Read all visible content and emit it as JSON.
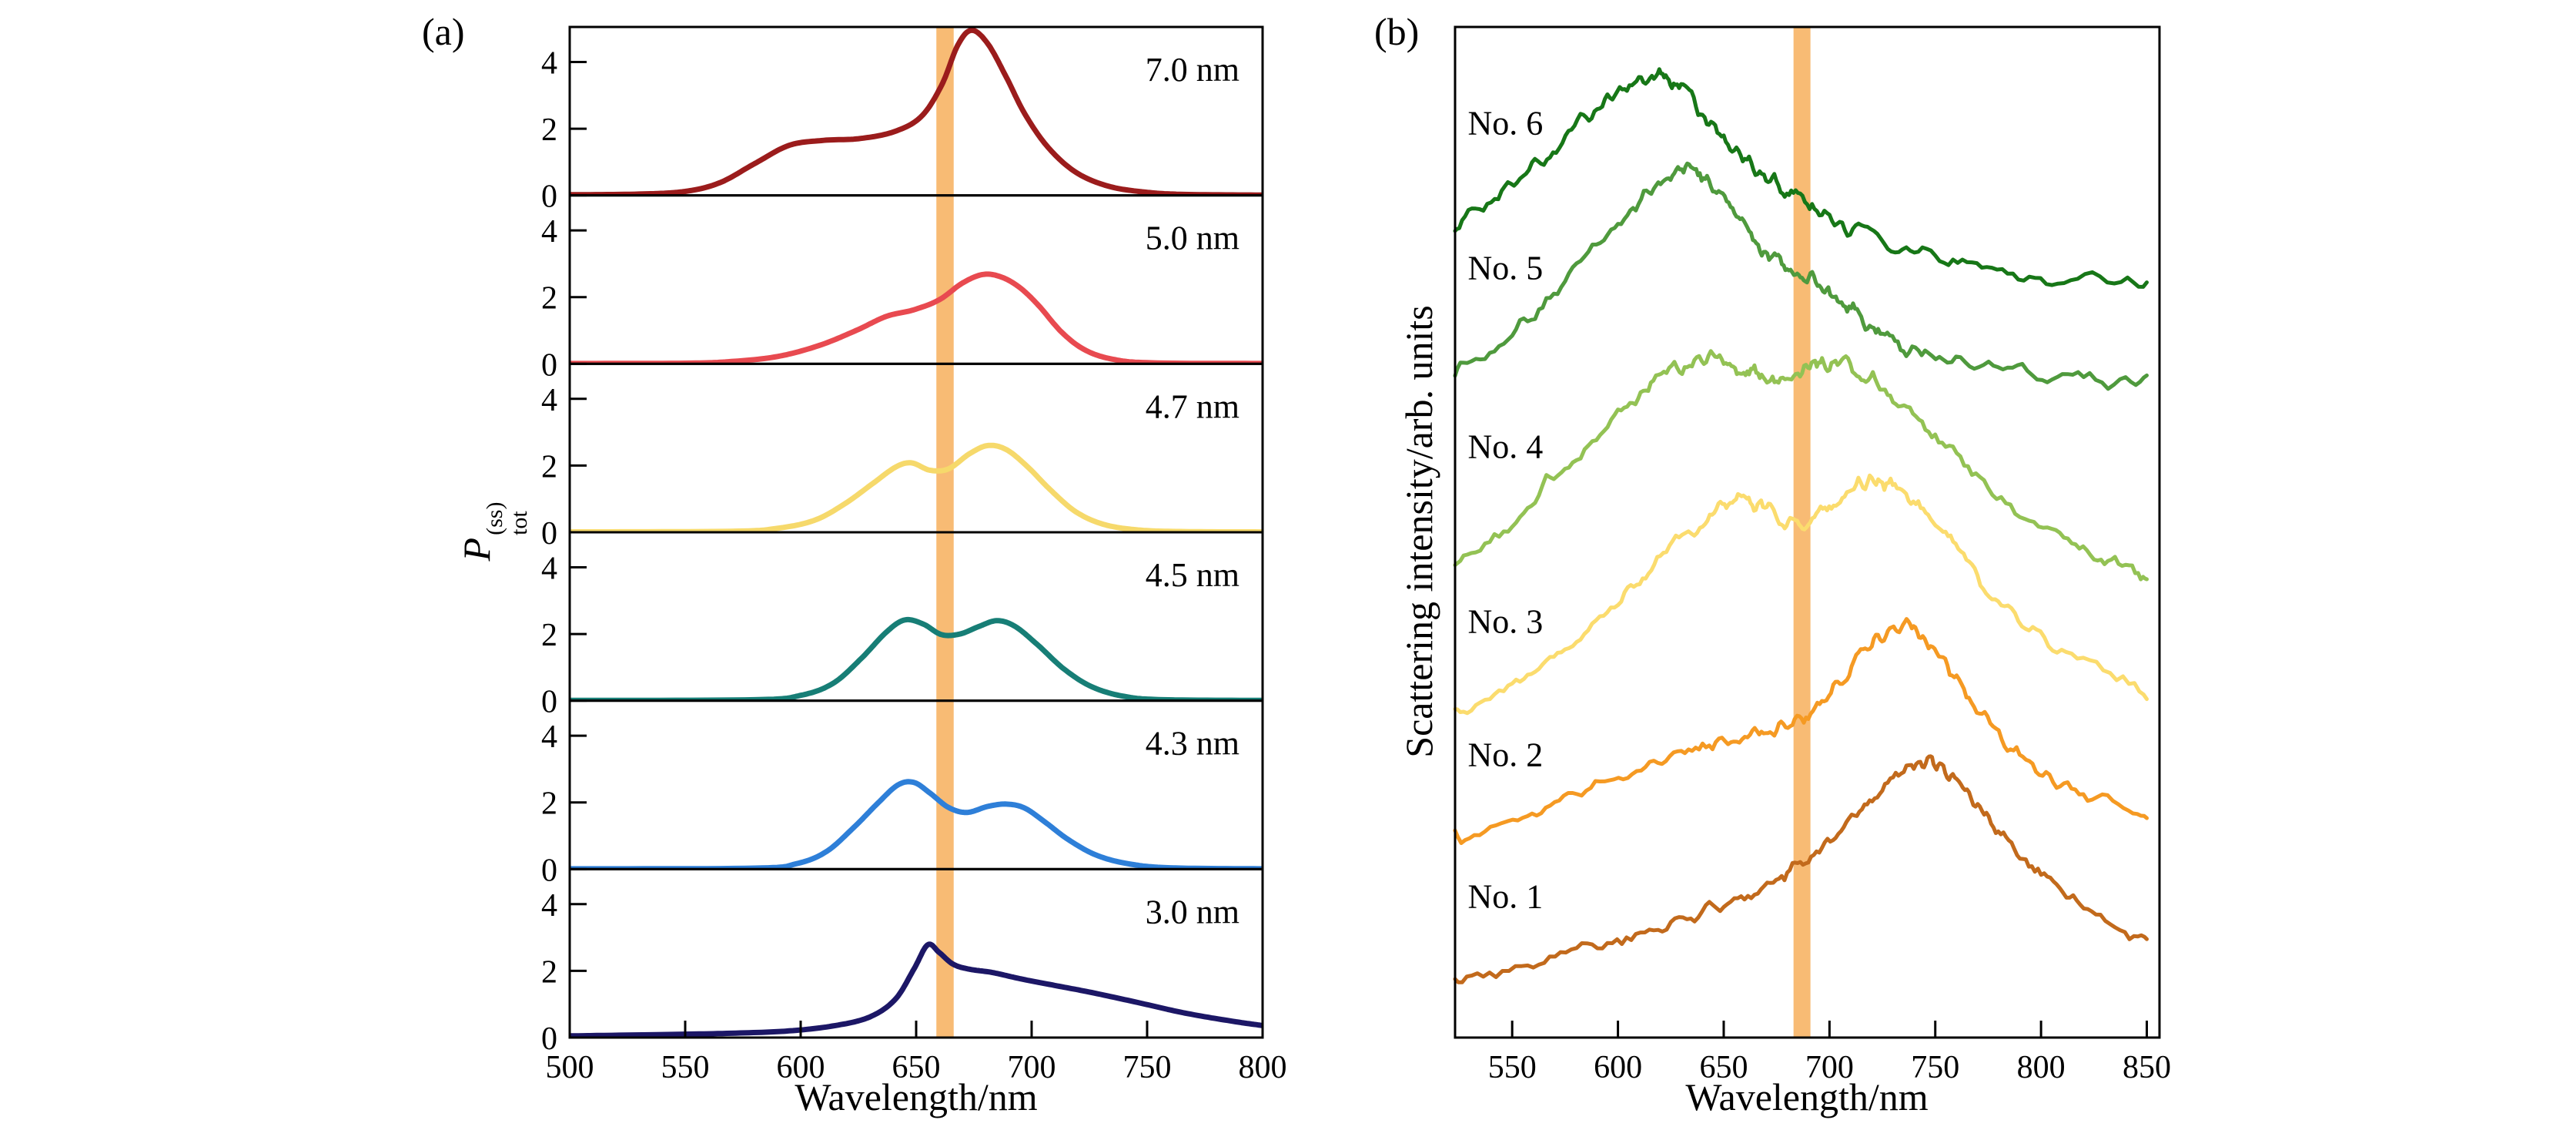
{
  "chart_data": [
    {
      "id": "panel_a",
      "type": "line",
      "panel_letter": "(a)",
      "xlabel": "Wavelength/nm",
      "ylabel": {
        "symbol": "P",
        "sup": "(ss)",
        "sub": "tot"
      },
      "xlim": [
        500,
        800
      ],
      "x_ticks": [
        500,
        550,
        600,
        650,
        700,
        750,
        800
      ],
      "ylim": [
        0,
        5.05
      ],
      "y_ticks": [
        0,
        2,
        4
      ],
      "grid": false,
      "band": {
        "center_nm": 662.5,
        "width_nm": 7.5,
        "color": "#F6A445",
        "opacity": 0.75
      },
      "subplots": [
        {
          "label": "7.0 nm",
          "color": "#9B1C1C",
          "points": [
            [
              500,
              0.02
            ],
            [
              530,
              0.04
            ],
            [
              550,
              0.12
            ],
            [
              565,
              0.38
            ],
            [
              580,
              0.95
            ],
            [
              595,
              1.5
            ],
            [
              610,
              1.65
            ],
            [
              625,
              1.7
            ],
            [
              640,
              1.9
            ],
            [
              652,
              2.35
            ],
            [
              661,
              3.3
            ],
            [
              668,
              4.5
            ],
            [
              674,
              4.95
            ],
            [
              681,
              4.55
            ],
            [
              689,
              3.55
            ],
            [
              697,
              2.45
            ],
            [
              707,
              1.45
            ],
            [
              719,
              0.7
            ],
            [
              733,
              0.28
            ],
            [
              749,
              0.1
            ],
            [
              766,
              0.03
            ],
            [
              800,
              0.01
            ]
          ]
        },
        {
          "label": "5.0 nm",
          "color": "#E84A50",
          "points": [
            [
              500,
              0.01
            ],
            [
              550,
              0.02
            ],
            [
              570,
              0.07
            ],
            [
              590,
              0.22
            ],
            [
              608,
              0.55
            ],
            [
              624,
              1.0
            ],
            [
              637,
              1.42
            ],
            [
              649,
              1.62
            ],
            [
              660,
              1.92
            ],
            [
              670,
              2.42
            ],
            [
              679,
              2.68
            ],
            [
              687,
              2.6
            ],
            [
              695,
              2.28
            ],
            [
              703,
              1.75
            ],
            [
              713,
              0.95
            ],
            [
              723,
              0.42
            ],
            [
              735,
              0.14
            ],
            [
              752,
              0.03
            ],
            [
              800,
              0.01
            ]
          ]
        },
        {
          "label": "4.7 nm",
          "color": "#F6D96B",
          "points": [
            [
              500,
              0.01
            ],
            [
              570,
              0.03
            ],
            [
              590,
              0.12
            ],
            [
              606,
              0.36
            ],
            [
              619,
              0.85
            ],
            [
              631,
              1.45
            ],
            [
              641,
              1.95
            ],
            [
              648,
              2.08
            ],
            [
              656,
              1.86
            ],
            [
              664,
              1.9
            ],
            [
              673,
              2.35
            ],
            [
              681,
              2.6
            ],
            [
              689,
              2.48
            ],
            [
              698,
              1.98
            ],
            [
              708,
              1.28
            ],
            [
              719,
              0.62
            ],
            [
              731,
              0.24
            ],
            [
              746,
              0.07
            ],
            [
              766,
              0.02
            ],
            [
              800,
              0.01
            ]
          ]
        },
        {
          "label": "4.5 nm",
          "color": "#177E76",
          "points": [
            [
              500,
              0.01
            ],
            [
              580,
              0.03
            ],
            [
              600,
              0.16
            ],
            [
              614,
              0.52
            ],
            [
              626,
              1.25
            ],
            [
              637,
              2.05
            ],
            [
              645,
              2.42
            ],
            [
              653,
              2.3
            ],
            [
              661,
              1.98
            ],
            [
              669,
              2.0
            ],
            [
              677,
              2.22
            ],
            [
              685,
              2.4
            ],
            [
              693,
              2.22
            ],
            [
              703,
              1.65
            ],
            [
              714,
              0.95
            ],
            [
              726,
              0.42
            ],
            [
              740,
              0.13
            ],
            [
              757,
              0.03
            ],
            [
              800,
              0.01
            ]
          ]
        },
        {
          "label": "4.3 nm",
          "color": "#2E7FD8",
          "points": [
            [
              500,
              0.01
            ],
            [
              580,
              0.03
            ],
            [
              598,
              0.16
            ],
            [
              611,
              0.52
            ],
            [
              623,
              1.25
            ],
            [
              633,
              1.95
            ],
            [
              642,
              2.52
            ],
            [
              649,
              2.6
            ],
            [
              656,
              2.28
            ],
            [
              664,
              1.85
            ],
            [
              672,
              1.7
            ],
            [
              681,
              1.88
            ],
            [
              689,
              1.95
            ],
            [
              697,
              1.83
            ],
            [
              706,
              1.4
            ],
            [
              716,
              0.88
            ],
            [
              728,
              0.42
            ],
            [
              742,
              0.16
            ],
            [
              760,
              0.04
            ],
            [
              800,
              0.01
            ]
          ]
        },
        {
          "label": "3.0 nm",
          "color": "#1C1766",
          "points": [
            [
              500,
              0.05
            ],
            [
              540,
              0.09
            ],
            [
              570,
              0.13
            ],
            [
              595,
              0.2
            ],
            [
              615,
              0.36
            ],
            [
              630,
              0.62
            ],
            [
              641,
              1.15
            ],
            [
              649,
              2.05
            ],
            [
              655,
              2.78
            ],
            [
              660,
              2.55
            ],
            [
              666,
              2.2
            ],
            [
              673,
              2.05
            ],
            [
              683,
              1.95
            ],
            [
              696,
              1.75
            ],
            [
              711,
              1.55
            ],
            [
              726,
              1.35
            ],
            [
              746,
              1.05
            ],
            [
              766,
              0.74
            ],
            [
              786,
              0.5
            ],
            [
              800,
              0.36
            ]
          ]
        }
      ]
    },
    {
      "id": "panel_b",
      "type": "line",
      "panel_letter": "(b)",
      "xlabel": "Wavelength/nm",
      "ylabel": "Scattering intensity/arb. units",
      "xlim": [
        523,
        856
      ],
      "x_ticks": [
        550,
        600,
        650,
        700,
        750,
        800,
        850
      ],
      "ylim": [
        0,
        10
      ],
      "grid": false,
      "band": {
        "center_nm": 687,
        "width_nm": 8,
        "color": "#F6A445",
        "opacity": 0.75
      },
      "noise_amplitude": 0.07,
      "series": [
        {
          "label": "No. 6",
          "color": "#177717",
          "label_pos": [
            529,
            9.05
          ],
          "points": [
            [
              523,
              8.05
            ],
            [
              545,
              8.35
            ],
            [
              565,
              8.7
            ],
            [
              585,
              9.1
            ],
            [
              602,
              9.38
            ],
            [
              617,
              9.5
            ],
            [
              628,
              9.42
            ],
            [
              642,
              9.1
            ],
            [
              656,
              8.78
            ],
            [
              670,
              8.52
            ],
            [
              684,
              8.32
            ],
            [
              700,
              8.12
            ],
            [
              718,
              7.95
            ],
            [
              742,
              7.76
            ],
            [
              772,
              7.6
            ],
            [
              808,
              7.5
            ],
            [
              850,
              7.42
            ]
          ]
        },
        {
          "label": "No. 5",
          "color": "#4F9A3D",
          "label_pos": [
            529,
            7.62
          ],
          "points": [
            [
              523,
              6.62
            ],
            [
              550,
              6.95
            ],
            [
              575,
              7.5
            ],
            [
              600,
              8.02
            ],
            [
              618,
              8.42
            ],
            [
              631,
              8.6
            ],
            [
              643,
              8.45
            ],
            [
              656,
              8.1
            ],
            [
              668,
              7.82
            ],
            [
              680,
              7.62
            ],
            [
              691,
              7.52
            ],
            [
              703,
              7.3
            ],
            [
              716,
              7.1
            ],
            [
              731,
              6.9
            ],
            [
              752,
              6.74
            ],
            [
              782,
              6.6
            ],
            [
              815,
              6.53
            ],
            [
              850,
              6.48
            ]
          ]
        },
        {
          "label": "No. 4",
          "color": "#93C254",
          "label_pos": [
            529,
            5.85
          ],
          "points": [
            [
              523,
              4.68
            ],
            [
              550,
              5.12
            ],
            [
              575,
              5.66
            ],
            [
              600,
              6.16
            ],
            [
              618,
              6.5
            ],
            [
              635,
              6.68
            ],
            [
              650,
              6.7
            ],
            [
              662,
              6.58
            ],
            [
              674,
              6.5
            ],
            [
              688,
              6.62
            ],
            [
              700,
              6.68
            ],
            [
              714,
              6.6
            ],
            [
              730,
              6.35
            ],
            [
              750,
              5.95
            ],
            [
              775,
              5.45
            ],
            [
              805,
              5.0
            ],
            [
              830,
              4.74
            ],
            [
              850,
              4.6
            ]
          ]
        },
        {
          "label": "No. 3",
          "color": "#FBDC6E",
          "label_pos": [
            529,
            4.12
          ],
          "points": [
            [
              523,
              3.25
            ],
            [
              550,
              3.5
            ],
            [
              575,
              3.85
            ],
            [
              600,
              4.3
            ],
            [
              620,
              4.75
            ],
            [
              640,
              5.1
            ],
            [
              654,
              5.3
            ],
            [
              666,
              5.28
            ],
            [
              678,
              5.1
            ],
            [
              690,
              5.1
            ],
            [
              704,
              5.34
            ],
            [
              719,
              5.5
            ],
            [
              733,
              5.44
            ],
            [
              749,
              5.12
            ],
            [
              766,
              4.68
            ],
            [
              786,
              4.2
            ],
            [
              812,
              3.8
            ],
            [
              850,
              3.42
            ]
          ]
        },
        {
          "label": "No. 2",
          "color": "#F59A23",
          "label_pos": [
            529,
            2.8
          ],
          "points": [
            [
              523,
              2.0
            ],
            [
              555,
              2.2
            ],
            [
              585,
              2.45
            ],
            [
              615,
              2.7
            ],
            [
              640,
              2.9
            ],
            [
              660,
              3.0
            ],
            [
              675,
              3.06
            ],
            [
              690,
              3.2
            ],
            [
              705,
              3.55
            ],
            [
              720,
              3.9
            ],
            [
              733,
              4.06
            ],
            [
              745,
              3.95
            ],
            [
              759,
              3.6
            ],
            [
              776,
              3.1
            ],
            [
              796,
              2.7
            ],
            [
              820,
              2.4
            ],
            [
              850,
              2.2
            ]
          ]
        },
        {
          "label": "No. 1",
          "color": "#C26A1C",
          "label_pos": [
            529,
            1.4
          ],
          "points": [
            [
              523,
              0.56
            ],
            [
              560,
              0.72
            ],
            [
              595,
              0.92
            ],
            [
              625,
              1.12
            ],
            [
              650,
              1.32
            ],
            [
              672,
              1.52
            ],
            [
              690,
              1.76
            ],
            [
              708,
              2.12
            ],
            [
              725,
              2.46
            ],
            [
              742,
              2.7
            ],
            [
              753,
              2.64
            ],
            [
              766,
              2.38
            ],
            [
              781,
              2.0
            ],
            [
              800,
              1.62
            ],
            [
              822,
              1.26
            ],
            [
              850,
              0.92
            ]
          ]
        }
      ]
    }
  ]
}
